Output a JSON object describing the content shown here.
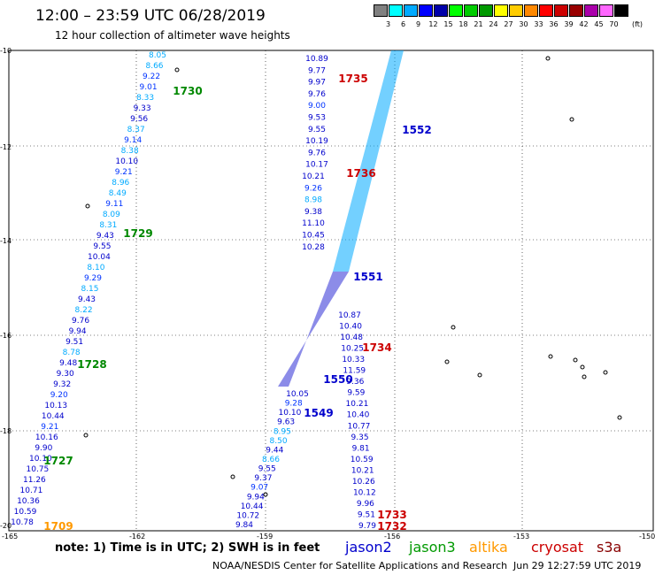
{
  "header": {
    "title": "12:00 – 23:59 UTC 06/28/2019",
    "subtitle": "12 hour collection of altimeter wave heights"
  },
  "legend": {
    "colors": [
      "#808080",
      "#00ffff",
      "#00aaff",
      "#0000ff",
      "#0000aa",
      "#00ff00",
      "#00cc00",
      "#009900",
      "#ffff00",
      "#ffcc00",
      "#ff8800",
      "#ff0000",
      "#cc0000",
      "#990000",
      "#aa00aa",
      "#ff66ff",
      "#000000"
    ],
    "labels": [
      "3",
      "6",
      "9",
      "12",
      "15",
      "18",
      "21",
      "24",
      "27",
      "30",
      "33",
      "36",
      "39",
      "42",
      "45",
      "70"
    ],
    "unit": "(ft)"
  },
  "axes": {
    "lat_ticks": [
      "-10",
      "-12",
      "-14",
      "-16",
      "-18",
      "-20"
    ],
    "lon_ticks": [
      "-165",
      "-162",
      "-159",
      "-156",
      "-153",
      "-150"
    ]
  },
  "map": {
    "track_labels": [
      {
        "text": "1730",
        "color": "#008800"
      },
      {
        "text": "1729",
        "color": "#008800"
      },
      {
        "text": "1728",
        "color": "#008800"
      },
      {
        "text": "1727",
        "color": "#008800"
      },
      {
        "text": "1709",
        "color": "#ff9900"
      },
      {
        "text": "1735",
        "color": "#cc0000"
      },
      {
        "text": "1734",
        "color": "#cc0000"
      },
      {
        "text": "1733",
        "color": "#cc0000"
      },
      {
        "text": "1732",
        "color": "#cc0000"
      },
      {
        "text": "1736",
        "color": "#cc0000"
      },
      {
        "text": "1552",
        "color": "#0000cc"
      },
      {
        "text": "1551",
        "color": "#0000cc"
      },
      {
        "text": "1550",
        "color": "#0000cc"
      },
      {
        "text": "1549",
        "color": "#0000cc"
      }
    ],
    "track_a": [
      "8.05",
      "8.66",
      "9.22",
      "9.01",
      "8.33",
      "9.33",
      "9.56",
      "8.37",
      "9.14",
      "8.38",
      "10.10",
      "9.21",
      "8.96",
      "8.49",
      "9.11",
      "8.09",
      "8.31",
      "9.43",
      "9.55",
      "10.04",
      "8.10",
      "9.29",
      "8.15",
      "9.43",
      "8.22",
      "9.76",
      "9.94",
      "9.51",
      "8.78",
      "9.48",
      "9.30",
      "9.32",
      "9.20",
      "10.13",
      "10.44",
      "9.21",
      "10.16",
      "9.90",
      "10.10",
      "10.75",
      "11.26",
      "10.71",
      "10.36",
      "10.59",
      "10.78"
    ],
    "track_b_left": [
      "10.89",
      "9.77",
      "9.97",
      "9.76",
      "9.00",
      "9.53",
      "9.55",
      "10.19",
      "9.76",
      "10.17",
      "10.21",
      "9.26",
      "8.98",
      "9.38",
      "11.10",
      "10.45",
      "10.28"
    ],
    "track_b_bottom": [
      "10.05",
      "9.28",
      "10.10",
      "9.63",
      "8.95",
      "8.50",
      "9.44",
      "8.66",
      "9.55",
      "9.37",
      "9.07",
      "9.94",
      "10.44",
      "10.72",
      "9.84"
    ],
    "track_c_right": [
      "10.87",
      "10.40",
      "10.48",
      "10.25",
      "10.33",
      "11.59",
      "9.36",
      "9.59",
      "10.21",
      "10.40",
      "10.77",
      "9.35",
      "9.81",
      "10.59",
      "10.21",
      "10.26",
      "10.12",
      "9.96",
      "9.51",
      "9.79"
    ]
  },
  "footer": {
    "note": "note:  1) Time is in UTC;  2) SWH is in feet",
    "satellites": [
      {
        "name": "jason2",
        "color": "#0000cc"
      },
      {
        "name": "jason3",
        "color": "#009900"
      },
      {
        "name": "altika",
        "color": "#ff9900"
      },
      {
        "name": "cryosat",
        "color": "#cc0000"
      },
      {
        "name": "s3a",
        "color": "#880000"
      }
    ],
    "credit": "NOAA/NESDIS Center for Satellite Applications and Research",
    "timestamp": "Jun 29 12:27:59 UTC 2019"
  }
}
